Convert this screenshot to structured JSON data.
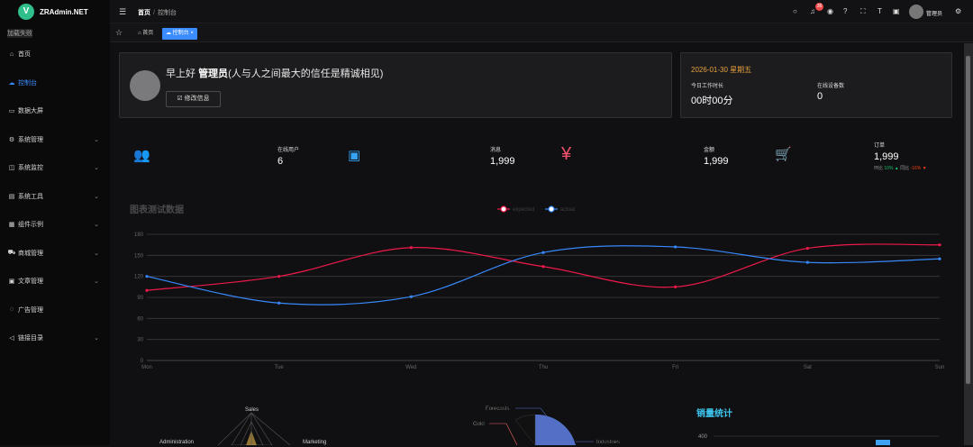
{
  "app": {
    "name": "ZRAdmin.NET",
    "logo_letter": "V",
    "load_fail": "加载失败"
  },
  "sidebar": {
    "items": [
      {
        "label": "首页",
        "icon": "home-icon",
        "glyph": "⌂",
        "has_children": false,
        "active": false
      },
      {
        "label": "控制台",
        "icon": "dashboard-icon",
        "glyph": "☁",
        "has_children": false,
        "active": true
      },
      {
        "label": "数据大屏",
        "icon": "monitor-icon",
        "glyph": "▭",
        "has_children": false,
        "active": false
      },
      {
        "label": "系统管理",
        "icon": "gear-icon",
        "glyph": "⚙",
        "has_children": true,
        "active": false
      },
      {
        "label": "系统监控",
        "icon": "chart-icon",
        "glyph": "◫",
        "has_children": true,
        "active": false
      },
      {
        "label": "系统工具",
        "icon": "toolbox-icon",
        "glyph": "▤",
        "has_children": true,
        "active": false
      },
      {
        "label": "组件示例",
        "icon": "component-icon",
        "glyph": "▦",
        "has_children": true,
        "active": false
      },
      {
        "label": "商城管理",
        "icon": "cart-icon",
        "glyph": "⛟",
        "has_children": true,
        "active": false
      },
      {
        "label": "文章管理",
        "icon": "article-icon",
        "glyph": "▣",
        "has_children": true,
        "active": false
      },
      {
        "label": "广告管理",
        "icon": "ad-icon",
        "glyph": "◌",
        "has_children": false,
        "active": false
      },
      {
        "label": "链接目录",
        "icon": "link-icon",
        "glyph": "◁",
        "has_children": true,
        "active": false
      }
    ]
  },
  "header": {
    "breadcrumb": [
      "首页",
      "控制台"
    ],
    "notice_count": "36",
    "username": "管理员"
  },
  "tabs": [
    {
      "label": "首页"
    },
    {
      "label": "控制台 ×"
    }
  ],
  "welcome": {
    "greeting": "早上好",
    "user": "管理员",
    "motto": "(人与人之间最大的信任是精诚相见)",
    "edit_label": "修改信息"
  },
  "datecard": {
    "date": "2026-01-30 星期五",
    "work_label": "今日工作时长",
    "work_value": "00时00分",
    "device_label": "在线设备数",
    "device_value": "0"
  },
  "stats": [
    {
      "label": "在线用户",
      "value": "6",
      "icon": "users-icon",
      "glyph": "👥",
      "color": "#40c9c6"
    },
    {
      "label": "消息",
      "value": "1,999",
      "icon": "message-icon",
      "glyph": "💬",
      "color": "#36a3f7"
    },
    {
      "label": "金额",
      "value": "1,999",
      "icon": "yen-icon",
      "glyph": "¥",
      "color": "#f4516c"
    },
    {
      "label": "订单",
      "value": "1,999",
      "icon": "shopping-icon",
      "glyph": "🛒",
      "color": "#34bfa3"
    }
  ],
  "trend": {
    "mom_label": "环比",
    "mom_value": "10%",
    "yoy_label": "同比",
    "yoy_value": "-16%"
  },
  "chart_data": {
    "type": "line",
    "title": "图表测试数据",
    "categories": [
      "Mon",
      "Tue",
      "Wed",
      "Thu",
      "Fri",
      "Sat",
      "Sun"
    ],
    "series": [
      {
        "name": "expected",
        "color": "#f0194b",
        "values": [
          100,
          120,
          161,
          134,
          105,
          160,
          165
        ]
      },
      {
        "name": "actual",
        "color": "#3888fa",
        "values": [
          120,
          82,
          91,
          154,
          162,
          140,
          145
        ]
      }
    ],
    "ylim": [
      0,
      180
    ],
    "yticks": [
      0,
      30,
      60,
      90,
      120,
      150,
      180
    ],
    "grid": true,
    "legend": "top-center"
  },
  "radar": {
    "labels": [
      "Sales",
      "Administration",
      "Marketing"
    ]
  },
  "pie": {
    "labels": [
      "Forecasts",
      "Gold",
      "Industries"
    ]
  },
  "sales": {
    "title": "销量统计",
    "tick": "400"
  }
}
